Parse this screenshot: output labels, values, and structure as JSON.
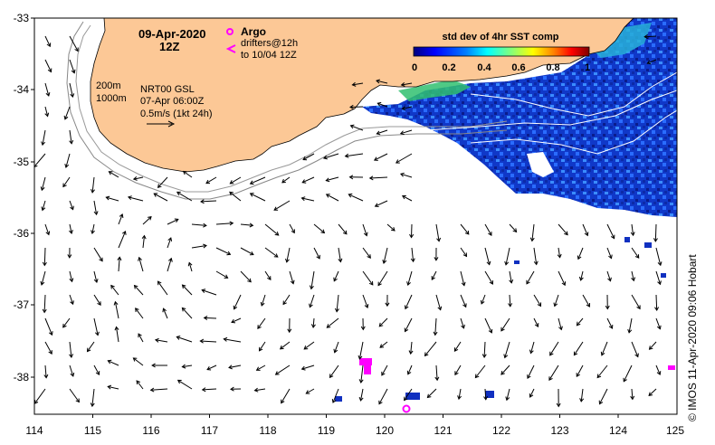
{
  "title": {
    "date": "09-Apr-2020",
    "time": "12Z"
  },
  "legend": {
    "argo_label": "Argo",
    "drifters_line1": "drifters@12h",
    "drifters_line2": "to 10/04 12Z",
    "argo_color": "#ff00ff",
    "drifter_color": "#ff00ff"
  },
  "isobaths": {
    "label_200": "200m",
    "label_1000": "1000m"
  },
  "current_info": {
    "line1": "NRT00 GSL",
    "line2": "07-Apr 06:00Z",
    "line3": "0.5m/s (1kt 24h)"
  },
  "colorbar": {
    "title": "std dev of 4hr SST comp",
    "ticks": [
      "0",
      "0.2",
      "0.4",
      "0.6",
      "0.8",
      "1"
    ],
    "colormap": [
      "#00007f",
      "#0000ff",
      "#007fff",
      "#00ffff",
      "#7fff7f",
      "#ffff00",
      "#ff7f00",
      "#ff0000",
      "#7f0000"
    ]
  },
  "axes": {
    "lon_ticks": [
      "114",
      "115",
      "116",
      "117",
      "118",
      "119",
      "120",
      "121",
      "122",
      "123",
      "124",
      "125"
    ],
    "lat_ticks": [
      "-33",
      "-34",
      "-35",
      "-36",
      "-37",
      "-38"
    ],
    "lon_range": [
      114,
      125
    ],
    "lat_range": [
      -38.5,
      -33
    ]
  },
  "colors": {
    "land": "#fcc896",
    "ocean": "#ffffff",
    "sst_low": "#00208f",
    "sst_mid": "#3060ff",
    "sst_high": "#20c060"
  },
  "credit": "© IMOS 11-Apr-2020 09:06 Hobart"
}
